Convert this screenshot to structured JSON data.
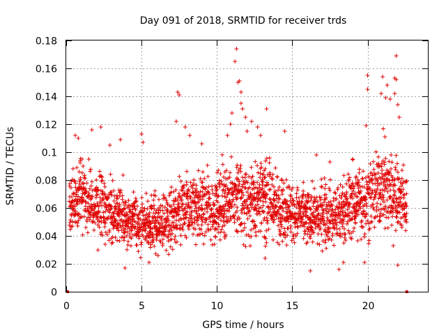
{
  "chart_data": {
    "type": "scatter",
    "title": "Day 091 of 2018, SRMTID for receiver trds",
    "xlabel": "GPS time / hours",
    "ylabel": "SRMTID / TECUs",
    "xlim": [
      0,
      24
    ],
    "ylim": [
      0,
      0.18
    ],
    "xticks": [
      0,
      5,
      10,
      15,
      20
    ],
    "xtick_labels": [
      "0",
      "5",
      "10",
      "15",
      "20"
    ],
    "yticks": [
      0,
      0.02,
      0.04,
      0.06,
      0.08,
      0.1,
      0.12,
      0.14,
      0.16,
      0.18
    ],
    "ytick_labels": [
      "0",
      "0.02",
      "0.04",
      "0.06",
      "0.08",
      "0.1",
      "0.12",
      "0.14",
      "0.16",
      "0.18"
    ],
    "grid": true,
    "marker": "plus",
    "color": "#e00000",
    "zero_markers": [
      0.1,
      22.6
    ],
    "profile": [
      [
        0.2,
        0.06,
        0.012
      ],
      [
        1.0,
        0.068,
        0.012
      ],
      [
        2.0,
        0.06,
        0.011
      ],
      [
        3.0,
        0.058,
        0.011
      ],
      [
        4.0,
        0.052,
        0.01
      ],
      [
        5.0,
        0.05,
        0.01
      ],
      [
        6.0,
        0.048,
        0.01
      ],
      [
        7.0,
        0.052,
        0.011
      ],
      [
        8.0,
        0.06,
        0.012
      ],
      [
        9.0,
        0.062,
        0.012
      ],
      [
        10.0,
        0.06,
        0.012
      ],
      [
        11.0,
        0.068,
        0.014
      ],
      [
        12.0,
        0.065,
        0.013
      ],
      [
        13.0,
        0.066,
        0.013
      ],
      [
        14.0,
        0.063,
        0.012
      ],
      [
        15.0,
        0.058,
        0.011
      ],
      [
        16.0,
        0.052,
        0.01
      ],
      [
        17.0,
        0.056,
        0.011
      ],
      [
        18.0,
        0.055,
        0.011
      ],
      [
        19.0,
        0.062,
        0.012
      ],
      [
        20.0,
        0.068,
        0.013
      ],
      [
        21.0,
        0.075,
        0.015
      ],
      [
        22.0,
        0.072,
        0.014
      ],
      [
        22.6,
        0.06,
        0.012
      ]
    ],
    "n_points_approx": 1800,
    "time_step_hours": 0.0125,
    "outliers": [
      [
        0.6,
        0.112
      ],
      [
        0.8,
        0.11
      ],
      [
        1.5,
        0.095
      ],
      [
        1.7,
        0.116
      ],
      [
        2.3,
        0.118
      ],
      [
        2.9,
        0.105
      ],
      [
        3.6,
        0.109
      ],
      [
        3.9,
        0.017
      ],
      [
        5.0,
        0.113
      ],
      [
        5.1,
        0.107
      ],
      [
        5.5,
        0.021
      ],
      [
        7.4,
        0.143
      ],
      [
        7.5,
        0.141
      ],
      [
        7.3,
        0.122
      ],
      [
        7.9,
        0.118
      ],
      [
        8.2,
        0.112
      ],
      [
        9.0,
        0.106
      ],
      [
        10.7,
        0.112
      ],
      [
        10.9,
        0.12
      ],
      [
        11.0,
        0.128
      ],
      [
        11.2,
        0.165
      ],
      [
        11.3,
        0.174
      ],
      [
        11.4,
        0.15
      ],
      [
        11.5,
        0.151
      ],
      [
        11.6,
        0.143
      ],
      [
        11.6,
        0.135
      ],
      [
        11.7,
        0.131
      ],
      [
        11.9,
        0.125
      ],
      [
        12.0,
        0.115
      ],
      [
        12.3,
        0.122
      ],
      [
        12.7,
        0.118
      ],
      [
        12.9,
        0.112
      ],
      [
        13.3,
        0.131
      ],
      [
        13.2,
        0.024
      ],
      [
        14.5,
        0.115
      ],
      [
        16.2,
        0.015
      ],
      [
        16.6,
        0.098
      ],
      [
        17.5,
        0.093
      ],
      [
        18.1,
        0.016
      ],
      [
        18.4,
        0.021
      ],
      [
        19.0,
        0.095
      ],
      [
        19.8,
        0.021
      ],
      [
        19.9,
        0.119
      ],
      [
        20.0,
        0.145
      ],
      [
        20.0,
        0.155
      ],
      [
        20.9,
        0.142
      ],
      [
        21.0,
        0.154
      ],
      [
        21.2,
        0.139
      ],
      [
        21.3,
        0.148
      ],
      [
        21.5,
        0.138
      ],
      [
        21.8,
        0.153
      ],
      [
        21.8,
        0.142
      ],
      [
        21.9,
        0.169
      ],
      [
        21.9,
        0.152
      ],
      [
        22.0,
        0.134
      ],
      [
        22.1,
        0.125
      ],
      [
        22.0,
        0.019
      ],
      [
        21.7,
        0.033
      ]
    ]
  }
}
